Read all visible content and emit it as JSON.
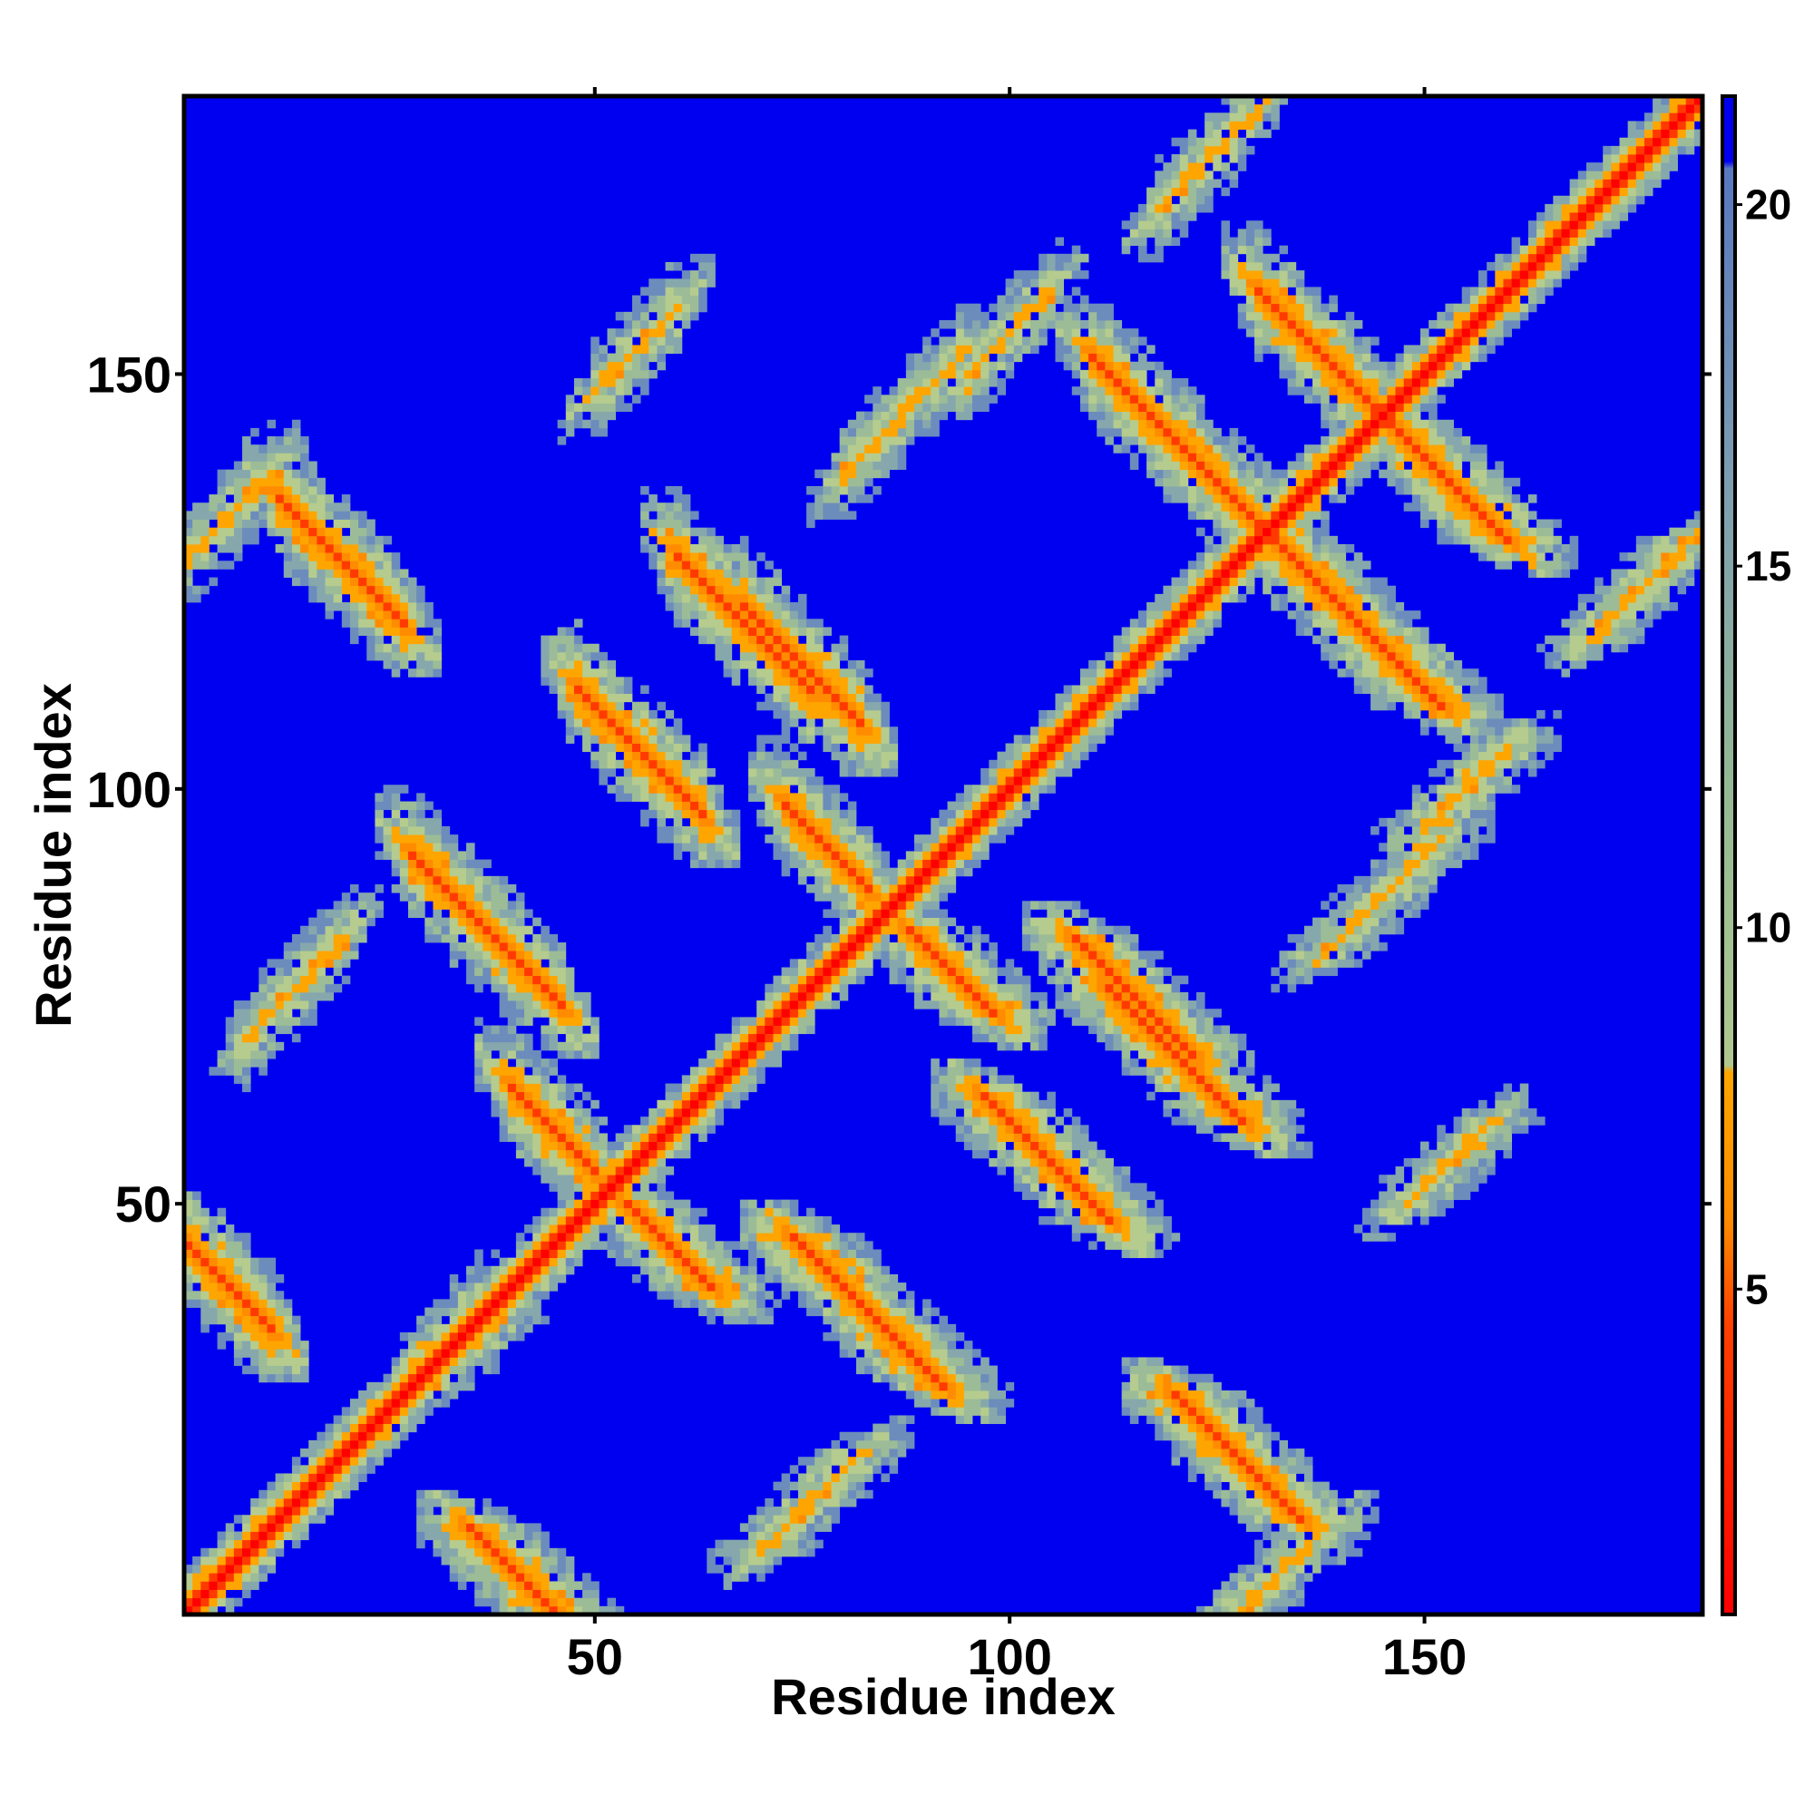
{
  "chart_data": {
    "type": "heatmap",
    "title": "",
    "xlabel": "Residue index",
    "ylabel": "Residue index",
    "n_residues": 183,
    "xlim": [
      1,
      183
    ],
    "ylim": [
      1,
      183
    ],
    "x_ticks": [
      50,
      100,
      150
    ],
    "y_ticks": [
      50,
      100,
      150
    ],
    "x_tick_labels": [
      "50",
      "100",
      "150"
    ],
    "y_tick_labels": [
      "50",
      "100",
      "150"
    ],
    "colorbar": {
      "range": [
        0.5,
        21.5
      ],
      "ticks": [
        5,
        10,
        15,
        20
      ],
      "tick_labels": [
        "5",
        "10",
        "15",
        "20"
      ],
      "stops": [
        {
          "value": 0.5,
          "color": "#ff0000"
        },
        {
          "value": 4.5,
          "color": "#ff4000"
        },
        {
          "value": 6.0,
          "color": "#ff8c00"
        },
        {
          "value": 8.0,
          "color": "#ffa500"
        },
        {
          "value": 8.1,
          "color": "#b0c890"
        },
        {
          "value": 12.0,
          "color": "#94b894"
        },
        {
          "value": 16.0,
          "color": "#7f9fb0"
        },
        {
          "value": 20.5,
          "color": "#5878c0"
        },
        {
          "value": 20.6,
          "color": "#0000f0"
        }
      ]
    },
    "background_color": "#0000f0",
    "diagonal_color": "#ff0000",
    "features": {
      "description_note": "",
      "diagonal": {
        "width": 3.5
      },
      "antiparallel_bands": [
        {
          "i": 1,
          "j": 45,
          "len": 10
        },
        {
          "i": 12,
          "j": 135,
          "len": 15
        },
        {
          "i": 28,
          "j": 92,
          "len": 18
        },
        {
          "i": 40,
          "j": 64,
          "len": 10
        },
        {
          "i": 48,
          "j": 112,
          "len": 15
        },
        {
          "i": 60,
          "j": 128,
          "len": 16
        },
        {
          "i": 68,
          "j": 122,
          "len": 14
        },
        {
          "i": 73,
          "j": 98,
          "len": 10
        },
        {
          "i": 110,
          "j": 152,
          "len": 22
        },
        {
          "i": 130,
          "j": 160,
          "len": 14
        }
      ],
      "cross_bands": [
        {
          "i": 1,
          "j": 128,
          "len": 10
        },
        {
          "i": 28,
          "j": 30,
          "len": 8
        },
        {
          "i": 8,
          "j": 70,
          "len": 12
        },
        {
          "i": 50,
          "j": 148,
          "len": 10
        },
        {
          "i": 80,
          "j": 138,
          "len": 14
        },
        {
          "i": 95,
          "j": 150,
          "len": 10
        },
        {
          "i": 118,
          "j": 170,
          "len": 12
        }
      ]
    }
  }
}
